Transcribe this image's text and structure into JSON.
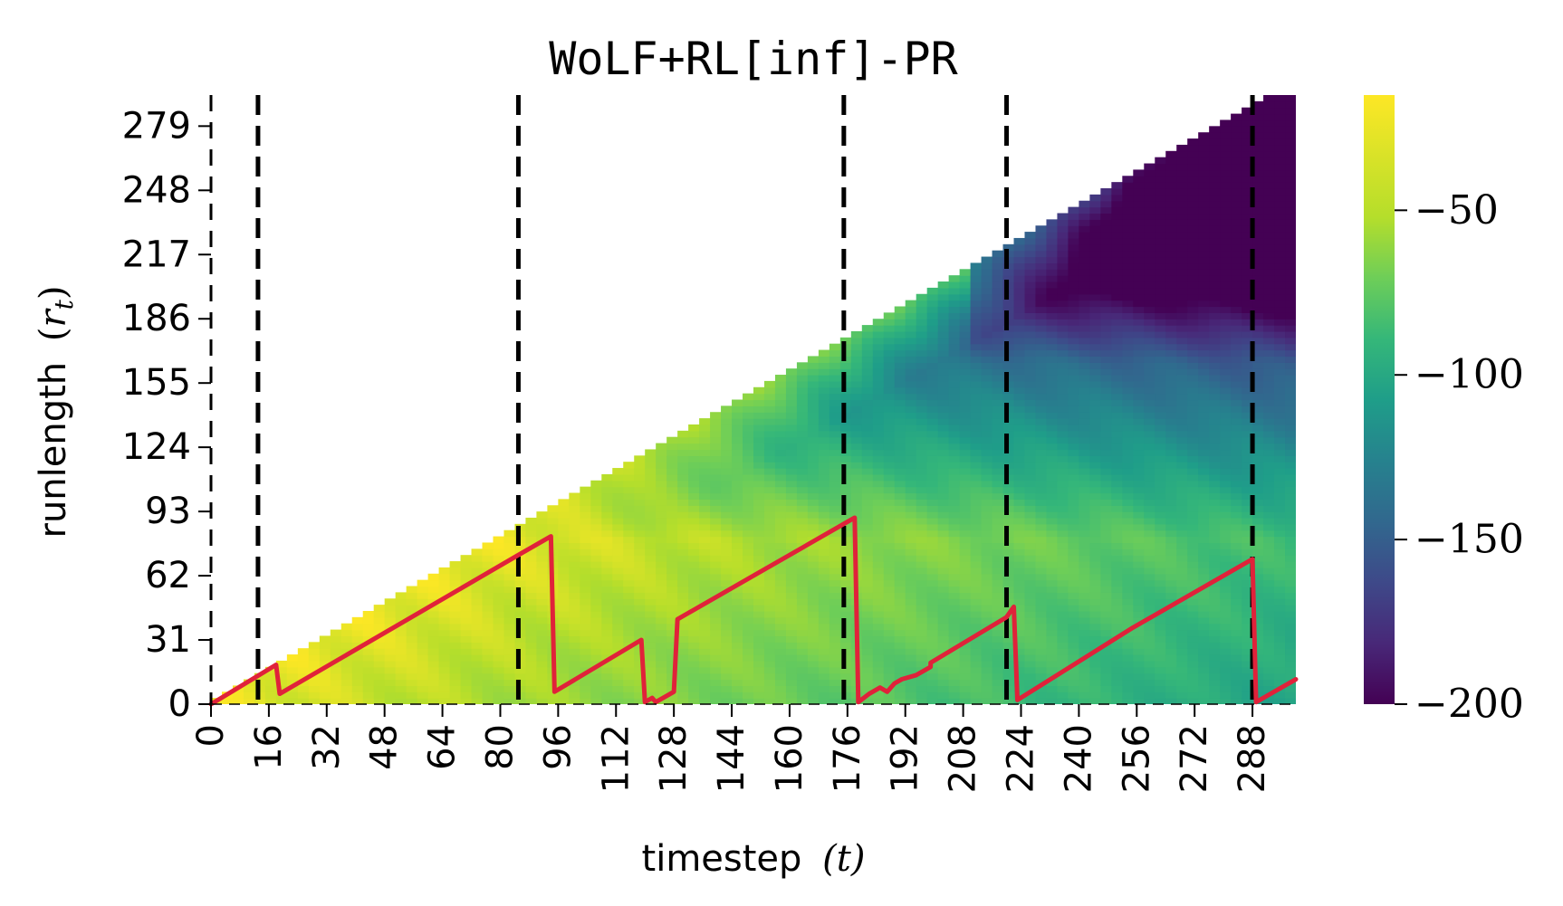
{
  "chart_data": {
    "type": "heatmap",
    "title": "WoLF+RL[inf]-PR",
    "xlabel": "timestep (t)",
    "ylabel": "runlength (r_t)",
    "xlabel_text": "timestep",
    "xlabel_symbol": "(t)",
    "ylabel_text": "runlength",
    "ylabel_symbol": "r",
    "ylabel_sub": "t",
    "x_ticks": [
      0,
      16,
      32,
      48,
      64,
      80,
      96,
      112,
      128,
      144,
      160,
      176,
      192,
      208,
      224,
      240,
      256,
      272,
      288
    ],
    "y_ticks": [
      0,
      31,
      62,
      93,
      124,
      155,
      186,
      217,
      248,
      279
    ],
    "xlim": [
      0,
      300
    ],
    "ylim": [
      0,
      294
    ],
    "colormap": "viridis",
    "colorbar": {
      "range": [
        -200,
        -15
      ],
      "ticks": [
        -200,
        -150,
        -100,
        -50
      ],
      "tick_labels": [
        "−200",
        "−150",
        "−100",
        "−50"
      ]
    },
    "changepoints": [
      13,
      85,
      175,
      220,
      288
    ],
    "map_runlength_path": [
      [
        0,
        0
      ],
      [
        18,
        19
      ],
      [
        19,
        5
      ],
      [
        85,
        72
      ],
      [
        94,
        81
      ],
      [
        95,
        6
      ],
      [
        119,
        31
      ],
      [
        120,
        1
      ],
      [
        122,
        3
      ],
      [
        123,
        1
      ],
      [
        128,
        6
      ],
      [
        129,
        41
      ],
      [
        178,
        90
      ],
      [
        179,
        1
      ],
      [
        182,
        5
      ],
      [
        185,
        8
      ],
      [
        187,
        6
      ],
      [
        189,
        10
      ],
      [
        191,
        12
      ],
      [
        195,
        14
      ],
      [
        199,
        18
      ],
      [
        199,
        20
      ],
      [
        220,
        42
      ],
      [
        222,
        47
      ],
      [
        223,
        2
      ],
      [
        255,
        37
      ],
      [
        288,
        70
      ],
      [
        289,
        1
      ],
      [
        300,
        12
      ]
    ],
    "line_color": "#e0223a",
    "changepoint_color": "#000000"
  }
}
